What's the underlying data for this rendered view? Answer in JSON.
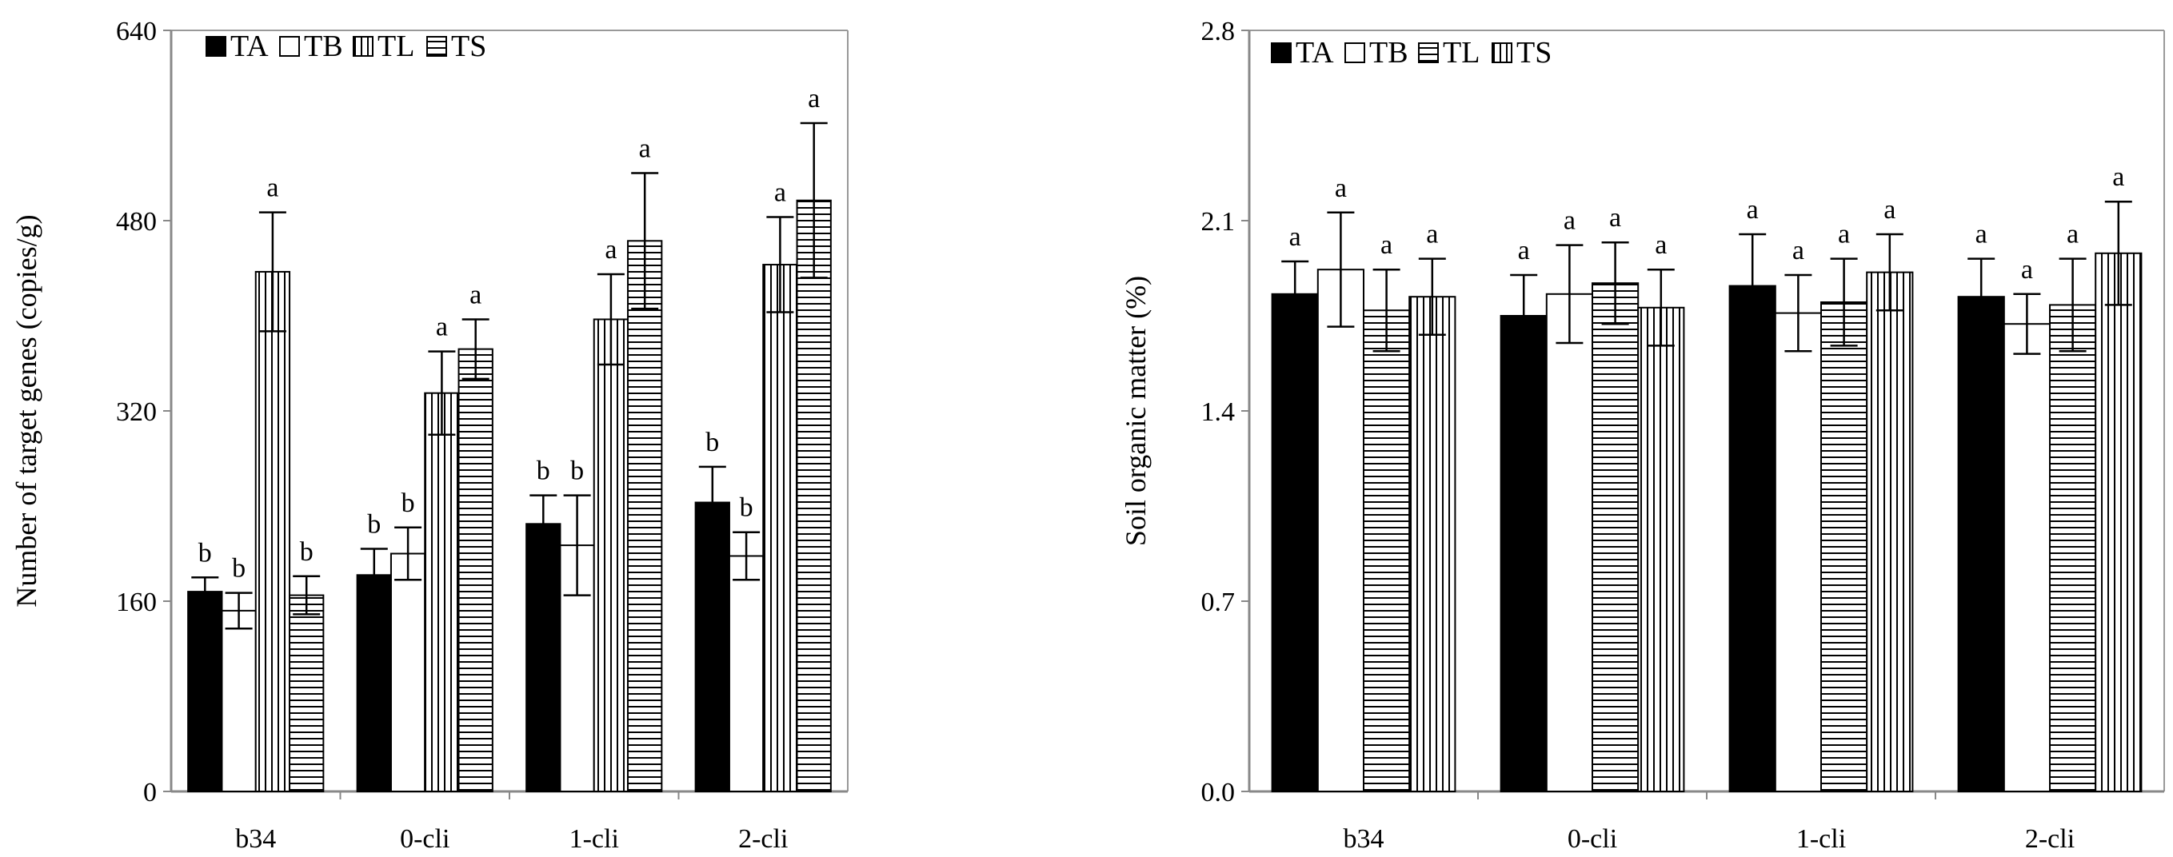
{
  "chart_data": [
    {
      "type": "bar",
      "title": "",
      "xlabel": "",
      "ylabel": "Number of target genes (copies/g)",
      "ylim": [
        0,
        640
      ],
      "yticks": [
        "0",
        "160",
        "320",
        "480",
        "640"
      ],
      "categories": [
        "b34",
        "0-cli",
        "1-cli",
        "2-cli"
      ],
      "legend": [
        "TA",
        "TB",
        "TL",
        "TS"
      ],
      "series": [
        {
          "name": "TA",
          "values": [
            168,
            182,
            225,
            243
          ],
          "errors": [
            12,
            22,
            24,
            30
          ],
          "letters": [
            "b",
            "b",
            "b",
            "b"
          ]
        },
        {
          "name": "TB",
          "values": [
            152,
            200,
            207,
            198
          ],
          "errors": [
            15,
            22,
            42,
            20
          ],
          "letters": [
            "b",
            "b",
            "b",
            "b"
          ]
        },
        {
          "name": "TL",
          "values": [
            437,
            335,
            397,
            443
          ],
          "errors": [
            50,
            35,
            38,
            40
          ],
          "letters": [
            "a",
            "a",
            "a",
            "a"
          ]
        },
        {
          "name": "TS",
          "values": [
            165,
            372,
            463,
            497
          ],
          "errors": [
            16,
            25,
            57,
            65
          ],
          "letters": [
            "b",
            "a",
            "a",
            "a"
          ]
        }
      ]
    },
    {
      "type": "bar",
      "title": "",
      "xlabel": "",
      "ylabel": "Soil organic matter (%)",
      "ylim": [
        0,
        2.8
      ],
      "yticks": [
        "0.0",
        "0.7",
        "1.4",
        "2.1",
        "2.8"
      ],
      "categories": [
        "b34",
        "0-cli",
        "1-cli",
        "2-cli"
      ],
      "legend": [
        "TA",
        "TB",
        "TL",
        "TS"
      ],
      "series": [
        {
          "name": "TA",
          "values": [
            1.83,
            1.75,
            1.86,
            1.82
          ],
          "errors": [
            0.12,
            0.15,
            0.19,
            0.14
          ],
          "letters": [
            "a",
            "a",
            "a",
            "a"
          ]
        },
        {
          "name": "TB",
          "values": [
            1.92,
            1.83,
            1.76,
            1.72
          ],
          "errors": [
            0.21,
            0.18,
            0.14,
            0.11
          ],
          "letters": [
            "a",
            "a",
            "a",
            "a"
          ]
        },
        {
          "name": "TL",
          "values": [
            1.77,
            1.87,
            1.8,
            1.79
          ],
          "errors": [
            0.15,
            0.15,
            0.16,
            0.17
          ],
          "letters": [
            "a",
            "a",
            "a",
            "a"
          ]
        },
        {
          "name": "TS",
          "values": [
            1.82,
            1.78,
            1.91,
            1.98
          ],
          "errors": [
            0.14,
            0.14,
            0.14,
            0.19
          ],
          "letters": [
            "a",
            "a",
            "a",
            "a"
          ]
        }
      ]
    }
  ]
}
